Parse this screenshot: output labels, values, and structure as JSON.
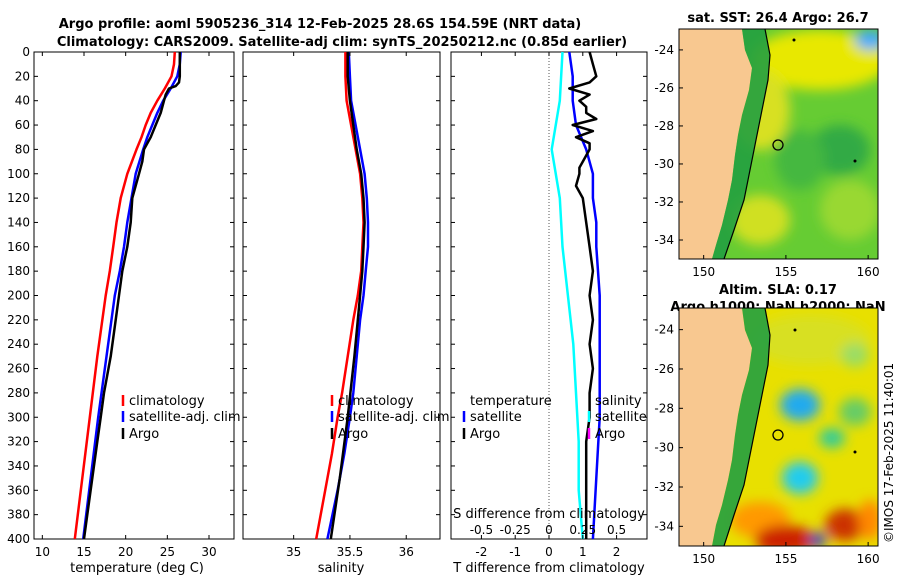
{
  "title_line1": "Argo profile: aoml 5905236_314 12-Feb-2025 28.6S 154.59E (NRT data)",
  "title_line2": "Climatology: CARS2009. Satellite-adj clim: synTS_20250212.nc (0.85d earlier)",
  "watermark": "©IMOS 17-Feb-2025 11:40:01",
  "colors": {
    "climatology": "#ff0000",
    "satellite": "#0000ff",
    "argo": "#000000",
    "sat_s": "#00ffff",
    "argo_s": "#ff00ff"
  },
  "chart_data": [
    {
      "id": "temperature",
      "type": "line",
      "xlabel": "temperature (deg C)",
      "xlim": [
        9,
        33
      ],
      "xticks": [
        10,
        15,
        20,
        25,
        30
      ],
      "ylim": [
        0,
        400
      ],
      "yticks": [
        0,
        20,
        40,
        60,
        80,
        100,
        120,
        140,
        160,
        180,
        200,
        220,
        240,
        260,
        280,
        300,
        320,
        340,
        360,
        380,
        400
      ],
      "legend": [
        "climatology",
        "satellite-adj. clim",
        "Argo"
      ],
      "series": [
        {
          "name": "climatology",
          "color": "#ff0000",
          "depth": [
            0,
            10,
            20,
            30,
            40,
            50,
            60,
            70,
            80,
            100,
            120,
            140,
            160,
            180,
            200,
            250,
            300,
            350,
            400
          ],
          "values": [
            25.9,
            25.8,
            25.5,
            24.7,
            23.8,
            23.0,
            22.4,
            21.9,
            21.3,
            20.2,
            19.4,
            18.9,
            18.5,
            18.1,
            17.6,
            16.6,
            15.7,
            14.8,
            13.9
          ]
        },
        {
          "name": "satellite-adj. clim",
          "color": "#0000ff",
          "depth": [
            0,
            10,
            20,
            30,
            40,
            50,
            60,
            70,
            80,
            100,
            120,
            140,
            160,
            180,
            200,
            250,
            300,
            350,
            400
          ],
          "values": [
            26.6,
            26.5,
            26.2,
            25.4,
            24.5,
            23.8,
            23.2,
            22.6,
            22.1,
            21.2,
            20.7,
            20.2,
            19.8,
            19.3,
            18.7,
            17.7,
            16.7,
            15.8,
            14.9
          ]
        },
        {
          "name": "Argo",
          "color": "#000000",
          "depth": [
            0,
            10,
            20,
            25,
            28,
            30,
            35,
            40,
            50,
            60,
            70,
            80,
            90,
            100,
            120,
            140,
            160,
            180,
            200,
            220,
            250,
            280,
            300,
            320,
            350,
            380,
            400
          ],
          "values": [
            26.5,
            26.5,
            26.5,
            26.4,
            26.0,
            25.2,
            24.8,
            24.6,
            24.2,
            23.6,
            23.0,
            22.2,
            22.0,
            21.6,
            20.8,
            20.6,
            20.2,
            19.6,
            19.2,
            18.8,
            18.2,
            17.4,
            17.0,
            16.6,
            16.0,
            15.4,
            15.0
          ]
        }
      ]
    },
    {
      "id": "salinity",
      "type": "line",
      "xlabel": "salinity",
      "xlim": [
        34.55,
        36.3
      ],
      "xticks": [
        35,
        35.5,
        36
      ],
      "ylim": [
        0,
        400
      ],
      "legend": [
        "climatology",
        "satellite-adj. clim",
        "Argo"
      ],
      "series": [
        {
          "name": "climatology",
          "color": "#ff0000",
          "depth": [
            0,
            20,
            40,
            60,
            80,
            100,
            120,
            140,
            160,
            180,
            200,
            220,
            250,
            280,
            300,
            330,
            360,
            400
          ],
          "values": [
            35.46,
            35.46,
            35.47,
            35.51,
            35.55,
            35.59,
            35.61,
            35.62,
            35.61,
            35.6,
            35.57,
            35.53,
            35.48,
            35.43,
            35.39,
            35.34,
            35.28,
            35.2
          ]
        },
        {
          "name": "satellite-adj. clim",
          "color": "#0000ff",
          "depth": [
            0,
            20,
            40,
            60,
            80,
            100,
            120,
            140,
            160,
            180,
            200,
            220,
            250,
            280,
            300,
            330,
            360,
            400
          ],
          "values": [
            35.49,
            35.5,
            35.51,
            35.55,
            35.59,
            35.63,
            35.65,
            35.66,
            35.66,
            35.64,
            35.62,
            35.59,
            35.56,
            35.53,
            35.5,
            35.45,
            35.39,
            35.3
          ]
        },
        {
          "name": "Argo",
          "color": "#000000",
          "depth": [
            0,
            20,
            30,
            40,
            60,
            80,
            100,
            120,
            140,
            160,
            180,
            200,
            250,
            300,
            350,
            400
          ],
          "values": [
            35.48,
            35.48,
            35.49,
            35.5,
            35.53,
            35.56,
            35.6,
            35.62,
            35.63,
            35.62,
            35.61,
            35.59,
            35.54,
            35.48,
            35.41,
            35.33
          ]
        }
      ]
    },
    {
      "id": "differences",
      "type": "line",
      "xlabel": "T difference from climatology",
      "xlabel_top": "S difference from climatology",
      "xlim": [
        -2.9,
        2.9
      ],
      "xticks": [
        -2,
        -1,
        0,
        1,
        2
      ],
      "top_ticks": [
        -0.5,
        -0.25,
        0,
        0.25,
        0.5
      ],
      "top_tick_labels": [
        "-0.5",
        "-0.25",
        "0",
        "0.25",
        "0.5"
      ],
      "ylim": [
        0,
        400
      ],
      "legend_temperature_title": "temperature",
      "legend_salinity_title": "salinity",
      "legend_temperature": [
        "satellite",
        "Argo"
      ],
      "legend_salinity": [
        "satellite",
        "Argo"
      ],
      "series": [
        {
          "name": "T satellite",
          "color": "#0000ff",
          "depth": [
            0,
            20,
            40,
            60,
            80,
            100,
            120,
            140,
            160,
            200,
            250,
            300,
            350,
            400
          ],
          "values": [
            0.6,
            0.7,
            0.7,
            0.8,
            1.1,
            1.3,
            1.3,
            1.4,
            1.4,
            1.5,
            1.5,
            1.5,
            1.4,
            1.3
          ]
        },
        {
          "name": "T Argo",
          "color": "#000000",
          "depth": [
            0,
            10,
            20,
            25,
            30,
            35,
            40,
            45,
            50,
            55,
            60,
            65,
            70,
            75,
            80,
            85,
            90,
            95,
            100,
            110,
            120,
            140,
            160,
            180,
            200,
            220,
            240,
            260,
            280,
            300,
            320,
            340,
            360,
            380,
            400
          ],
          "values": [
            1.2,
            1.3,
            1.4,
            1.2,
            0.6,
            1.2,
            0.9,
            1.1,
            1.1,
            1.4,
            0.7,
            1.3,
            0.8,
            1.2,
            1.2,
            1.1,
            1.0,
            0.9,
            0.9,
            0.8,
            1.0,
            1.1,
            1.2,
            1.3,
            1.2,
            1.3,
            1.2,
            1.3,
            1.2,
            1.2,
            1.1,
            1.1,
            1.1,
            1.1,
            1.1
          ]
        },
        {
          "name": "S satellite",
          "color": "#00ffff",
          "depth": [
            0,
            40,
            80,
            120,
            160,
            200,
            240,
            280,
            320,
            360,
            400
          ],
          "values": [
            0.1,
            0.08,
            0.02,
            0.08,
            0.1,
            0.14,
            0.18,
            0.2,
            0.22,
            0.22,
            0.25
          ]
        }
      ]
    },
    {
      "id": "sst_map",
      "type": "heatmap",
      "title": "sat. SST: 26.4 Argo: 26.7",
      "xticks": [
        150,
        155,
        160
      ],
      "yticks": [
        -24,
        -26,
        -28,
        -30,
        -32,
        -34
      ],
      "xlim": [
        148.5,
        160.6
      ],
      "ylim": [
        -35,
        -22.9
      ]
    },
    {
      "id": "sla_map",
      "type": "heatmap",
      "title_line1": "Altim. SLA: 0.17",
      "title_line2": "Argo h1000: NaN h2000: NaN",
      "xticks": [
        150,
        155,
        160
      ],
      "yticks": [
        -24,
        -26,
        -28,
        -30,
        -32,
        -34
      ],
      "xlim": [
        148.5,
        160.6
      ],
      "ylim": [
        -35,
        -22.9
      ]
    }
  ]
}
